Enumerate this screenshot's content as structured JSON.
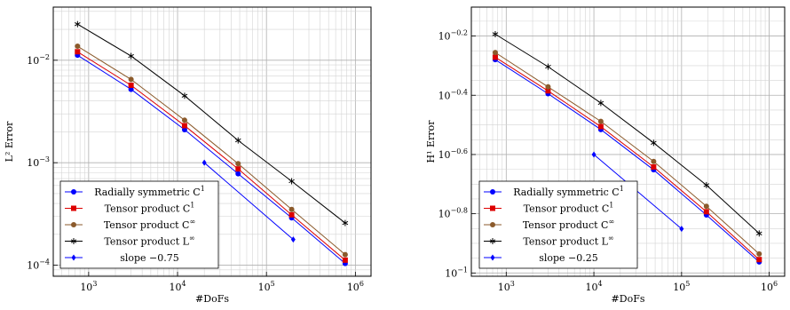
{
  "chart_data": [
    {
      "type": "line",
      "xscale": "log",
      "yscale": "log",
      "xlabel": "#DoFs",
      "ylabel": "L² Error",
      "xlim": [
        400,
        1500000
      ],
      "ylim": [
        7.8e-05,
        0.033
      ],
      "xticks": [
        {
          "v": 1000,
          "b": "10",
          "e": "3"
        },
        {
          "v": 10000,
          "b": "10",
          "e": "4"
        },
        {
          "v": 100000,
          "b": "10",
          "e": "5"
        },
        {
          "v": 1000000,
          "b": "10",
          "e": "6"
        }
      ],
      "yticks": [
        {
          "v": 0.0001,
          "b": "10",
          "e": "−4"
        },
        {
          "v": 0.001,
          "b": "10",
          "e": "−3"
        },
        {
          "v": 0.01,
          "b": "10",
          "e": "−2"
        }
      ],
      "grid": true,
      "legend_position": "bottom-left",
      "series": [
        {
          "name": "Radially symmetric C",
          "sup": "1",
          "color": "#0000ff",
          "marker": "circle",
          "x": [
            750,
            3000,
            12000,
            48000,
            192000,
            768000
          ],
          "y": [
            0.0112,
            0.0052,
            0.0021,
            0.00078,
            0.00029,
            0.000104
          ]
        },
        {
          "name": "Tensor product C",
          "sup": "1",
          "color": "#dd0000",
          "marker": "square",
          "x": [
            750,
            3000,
            12000,
            48000,
            192000,
            768000
          ],
          "y": [
            0.0121,
            0.0057,
            0.0023,
            0.00087,
            0.00031,
            0.000112
          ]
        },
        {
          "name": "Tensor product C",
          "sup": "∞",
          "color": "#8b5a2b",
          "marker": "circle",
          "x": [
            750,
            3000,
            12000,
            48000,
            192000,
            768000
          ],
          "y": [
            0.0137,
            0.0065,
            0.0026,
            0.00098,
            0.00035,
            0.000127
          ]
        },
        {
          "name": "Tensor product L",
          "sup": "∞",
          "color": "#000000",
          "marker": "star",
          "x": [
            750,
            3000,
            12000,
            48000,
            192000,
            768000
          ],
          "y": [
            0.0225,
            0.011,
            0.0045,
            0.00165,
            0.00066,
            0.000258
          ]
        },
        {
          "name": "slope −0.75",
          "sup": "",
          "color": "#0000ff",
          "marker": "diamond",
          "x": [
            20000,
            200000
          ],
          "y": [
            0.001,
            0.000178
          ]
        }
      ]
    },
    {
      "type": "line",
      "xscale": "log",
      "yscale": "log",
      "xlabel": "#DoFs",
      "ylabel": "H¹ Error",
      "xlim": [
        400,
        1500000
      ],
      "ylim": [
        0.0975,
        0.79
      ],
      "xticks": [
        {
          "v": 1000,
          "b": "10",
          "e": "3"
        },
        {
          "v": 10000,
          "b": "10",
          "e": "4"
        },
        {
          "v": 100000,
          "b": "10",
          "e": "5"
        },
        {
          "v": 1000000,
          "b": "10",
          "e": "6"
        }
      ],
      "yticks": [
        {
          "v": 0.1,
          "b": "10",
          "e": "−1"
        },
        {
          "v": 0.1585,
          "b": "10",
          "e": "−0.8"
        },
        {
          "v": 0.2512,
          "b": "10",
          "e": "−0.6"
        },
        {
          "v": 0.3981,
          "b": "10",
          "e": "−0.4"
        },
        {
          "v": 0.631,
          "b": "10",
          "e": "−0.2"
        }
      ],
      "grid": true,
      "legend_position": "bottom-left",
      "series": [
        {
          "name": "Radially symmetric C",
          "sup": "1",
          "color": "#0000ff",
          "marker": "circle",
          "x": [
            750,
            3000,
            12000,
            48000,
            192000,
            768000
          ],
          "y": [
            0.525,
            0.403,
            0.305,
            0.223,
            0.157,
            0.109
          ]
        },
        {
          "name": "Tensor product C",
          "sup": "1",
          "color": "#dd0000",
          "marker": "square",
          "x": [
            750,
            3000,
            12000,
            48000,
            192000,
            768000
          ],
          "y": [
            0.535,
            0.412,
            0.312,
            0.228,
            0.161,
            0.111
          ]
        },
        {
          "name": "Tensor product C",
          "sup": "∞",
          "color": "#8b5a2b",
          "marker": "circle",
          "x": [
            750,
            3000,
            12000,
            48000,
            192000,
            768000
          ],
          "y": [
            0.555,
            0.425,
            0.325,
            0.238,
            0.168,
            0.116
          ]
        },
        {
          "name": "Tensor product L",
          "sup": "∞",
          "color": "#000000",
          "marker": "star",
          "x": [
            750,
            3000,
            12000,
            48000,
            192000,
            768000
          ],
          "y": [
            0.64,
            0.497,
            0.375,
            0.275,
            0.198,
            0.136
          ]
        },
        {
          "name": "slope −0.25",
          "sup": "",
          "color": "#0000ff",
          "marker": "diamond",
          "x": [
            10000,
            100000
          ],
          "y": [
            0.251,
            0.141
          ]
        }
      ]
    }
  ]
}
